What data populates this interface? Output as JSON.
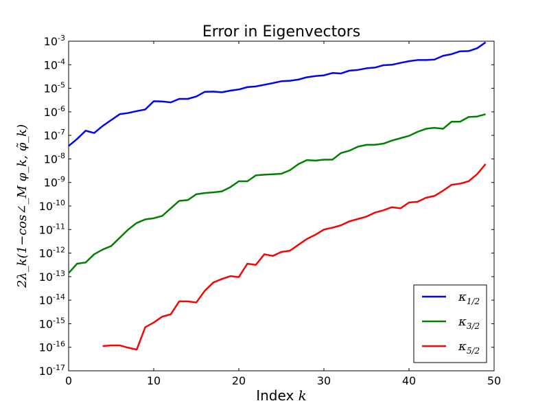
{
  "chart_data": {
    "type": "line",
    "title": "Error in Eigenvectors",
    "xlabel": {
      "text": "Index",
      "math": "k"
    },
    "ylabel": "2λ_k(1−cos∠_M φ_k, φ̃_k)",
    "xlim": [
      0,
      50
    ],
    "ylim_log10": [
      -17,
      -3
    ],
    "yscale": "log",
    "grid": false,
    "legend_position": "lower-right",
    "x_ticks": [
      "0",
      "10",
      "20",
      "30",
      "40",
      "50"
    ],
    "y_ticks": [
      {
        "base": "10",
        "exp": "-17"
      },
      {
        "base": "10",
        "exp": "-16"
      },
      {
        "base": "10",
        "exp": "-15"
      },
      {
        "base": "10",
        "exp": "-14"
      },
      {
        "base": "10",
        "exp": "-13"
      },
      {
        "base": "10",
        "exp": "-12"
      },
      {
        "base": "10",
        "exp": "-11"
      },
      {
        "base": "10",
        "exp": "-10"
      },
      {
        "base": "10",
        "exp": "-9"
      },
      {
        "base": "10",
        "exp": "-8"
      },
      {
        "base": "10",
        "exp": "-7"
      },
      {
        "base": "10",
        "exp": "-6"
      },
      {
        "base": "10",
        "exp": "-5"
      },
      {
        "base": "10",
        "exp": "-4"
      },
      {
        "base": "10",
        "exp": "-3"
      }
    ],
    "series": [
      {
        "name": "κ_{1/2}",
        "legend_main": "κ",
        "legend_sub": "1/2",
        "color": "#0000ff",
        "x": [
          0,
          1,
          2,
          3,
          4,
          5,
          6,
          7,
          8,
          9,
          10,
          11,
          12,
          13,
          14,
          15,
          16,
          17,
          18,
          19,
          20,
          21,
          22,
          23,
          24,
          25,
          26,
          27,
          28,
          29,
          30,
          31,
          32,
          33,
          34,
          35,
          36,
          37,
          38,
          39,
          40,
          41,
          42,
          43,
          44,
          45,
          46,
          47,
          48,
          49
        ],
        "log10_y": [
          -7.45,
          -7.15,
          -6.8,
          -6.9,
          -6.6,
          -6.35,
          -6.1,
          -6.05,
          -5.97,
          -5.9,
          -5.55,
          -5.56,
          -5.6,
          -5.45,
          -5.45,
          -5.35,
          -5.15,
          -5.14,
          -5.17,
          -5.1,
          -5.05,
          -4.95,
          -4.92,
          -4.85,
          -4.78,
          -4.7,
          -4.68,
          -4.63,
          -4.53,
          -4.48,
          -4.45,
          -4.35,
          -4.37,
          -4.25,
          -4.22,
          -4.15,
          -4.12,
          -4.02,
          -4.0,
          -3.92,
          -3.85,
          -3.8,
          -3.8,
          -3.78,
          -3.62,
          -3.55,
          -3.43,
          -3.42,
          -3.3,
          -3.05
        ]
      },
      {
        "name": "κ_{3/2}",
        "legend_main": "κ",
        "legend_sub": "3/2",
        "color": "#008000",
        "x": [
          0,
          1,
          2,
          3,
          4,
          5,
          6,
          7,
          8,
          9,
          10,
          11,
          12,
          13,
          14,
          15,
          16,
          17,
          18,
          19,
          20,
          21,
          22,
          23,
          24,
          25,
          26,
          27,
          28,
          29,
          30,
          31,
          32,
          33,
          34,
          35,
          36,
          37,
          38,
          39,
          40,
          41,
          42,
          43,
          44,
          45,
          46,
          47,
          48,
          49
        ],
        "log10_y": [
          -12.85,
          -12.45,
          -12.4,
          -12.05,
          -11.85,
          -11.7,
          -11.35,
          -11.0,
          -10.72,
          -10.57,
          -10.52,
          -10.42,
          -10.1,
          -9.78,
          -9.75,
          -9.5,
          -9.45,
          -9.42,
          -9.38,
          -9.2,
          -8.95,
          -8.95,
          -8.7,
          -8.67,
          -8.65,
          -8.63,
          -8.48,
          -8.22,
          -8.05,
          -8.07,
          -8.03,
          -8.03,
          -7.75,
          -7.65,
          -7.48,
          -7.4,
          -7.4,
          -7.35,
          -7.22,
          -7.12,
          -7.02,
          -6.85,
          -6.72,
          -6.68,
          -6.72,
          -6.42,
          -6.42,
          -6.22,
          -6.2,
          -6.1
        ]
      },
      {
        "name": "κ_{5/2}",
        "legend_main": "κ",
        "legend_sub": "5/2",
        "color": "#ff0000",
        "x": [
          4,
          5,
          6,
          7,
          8,
          9,
          10,
          11,
          12,
          13,
          14,
          15,
          16,
          17,
          18,
          19,
          20,
          21,
          22,
          23,
          24,
          25,
          26,
          27,
          28,
          29,
          30,
          31,
          32,
          33,
          34,
          35,
          36,
          37,
          38,
          39,
          40,
          41,
          42,
          43,
          44,
          45,
          46,
          47,
          48,
          49
        ],
        "log10_y": [
          -15.95,
          -15.92,
          -15.92,
          -16.02,
          -16.1,
          -15.15,
          -14.95,
          -14.7,
          -14.6,
          -14.05,
          -14.05,
          -14.1,
          -13.6,
          -13.25,
          -13.1,
          -12.98,
          -13.02,
          -12.45,
          -12.5,
          -12.05,
          -12.12,
          -11.95,
          -11.9,
          -11.65,
          -11.4,
          -11.22,
          -11.0,
          -10.92,
          -10.82,
          -10.65,
          -10.55,
          -10.45,
          -10.28,
          -10.18,
          -10.05,
          -10.1,
          -9.85,
          -9.82,
          -9.65,
          -9.57,
          -9.35,
          -9.1,
          -9.05,
          -8.95,
          -8.65,
          -8.22
        ]
      }
    ]
  }
}
